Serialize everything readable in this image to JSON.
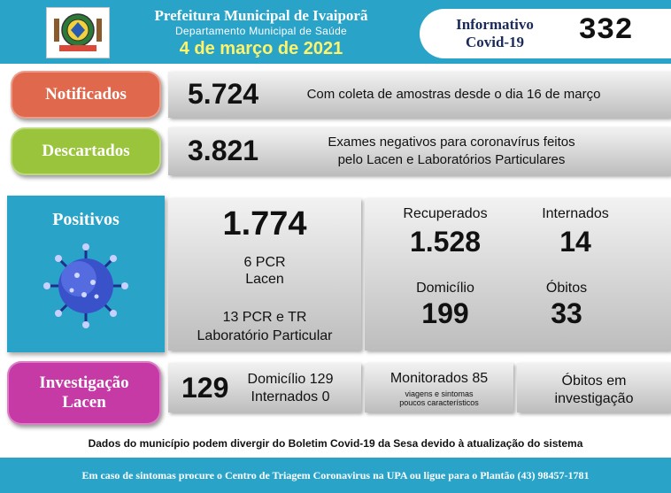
{
  "header": {
    "title": "Prefeitura Municipal de Ivaiporã",
    "subtitle": "Departamento Municipal de Saúde",
    "date": "4 de março de 2021",
    "info_title": "Informativo Covid-19",
    "bulletin_number": "332"
  },
  "notificados": {
    "label": "Notificados",
    "value": "5.724",
    "description": "Com coleta de amostras desde o dia 16 de março",
    "color": "#e0684c"
  },
  "descartados": {
    "label": "Descartados",
    "value": "3.821",
    "description_line1": "Exames negativos para coronavírus feitos",
    "description_line2": "pelo Lacen e Laboratórios Particulares",
    "color": "#9ac43b"
  },
  "positivos": {
    "label": "Positivos",
    "value": "1.774",
    "lacen_line1": "6 PCR",
    "lacen_line2": "Lacen",
    "lab_line1": "13 PCR e TR",
    "lab_line2": "Laboratório Particular",
    "color": "#2aa3c9",
    "icon": "coronavirus-icon"
  },
  "stats": {
    "recuperados_label": "Recuperados",
    "recuperados_value": "1.528",
    "internados_label": "Internados",
    "internados_value": "14",
    "domicilio_label": "Domicílio",
    "domicilio_value": "199",
    "obitos_label": "Óbitos",
    "obitos_value": "33"
  },
  "investigacao": {
    "label_line1": "Investigação",
    "label_line2": "Lacen",
    "value": "129",
    "domicilio": "Domicílio 129",
    "internados": "Internados 0",
    "monitorados": "Monitorados 85",
    "monitorados_note_line1": "viagens e sintomas",
    "monitorados_note_line2": "poucos característicos",
    "obitos_line1": "Óbitos em",
    "obitos_line2": "investigação",
    "color": "#c63aa6"
  },
  "footer": {
    "note": "Dados do município podem divergir do Boletim Covid-19 da Sesa devido à atualização do sistema",
    "contact": "Em caso de sintomas procure o Centro de Triagem Coronavirus na UPA ou ligue para o Plantão (43) 98457-1781"
  }
}
